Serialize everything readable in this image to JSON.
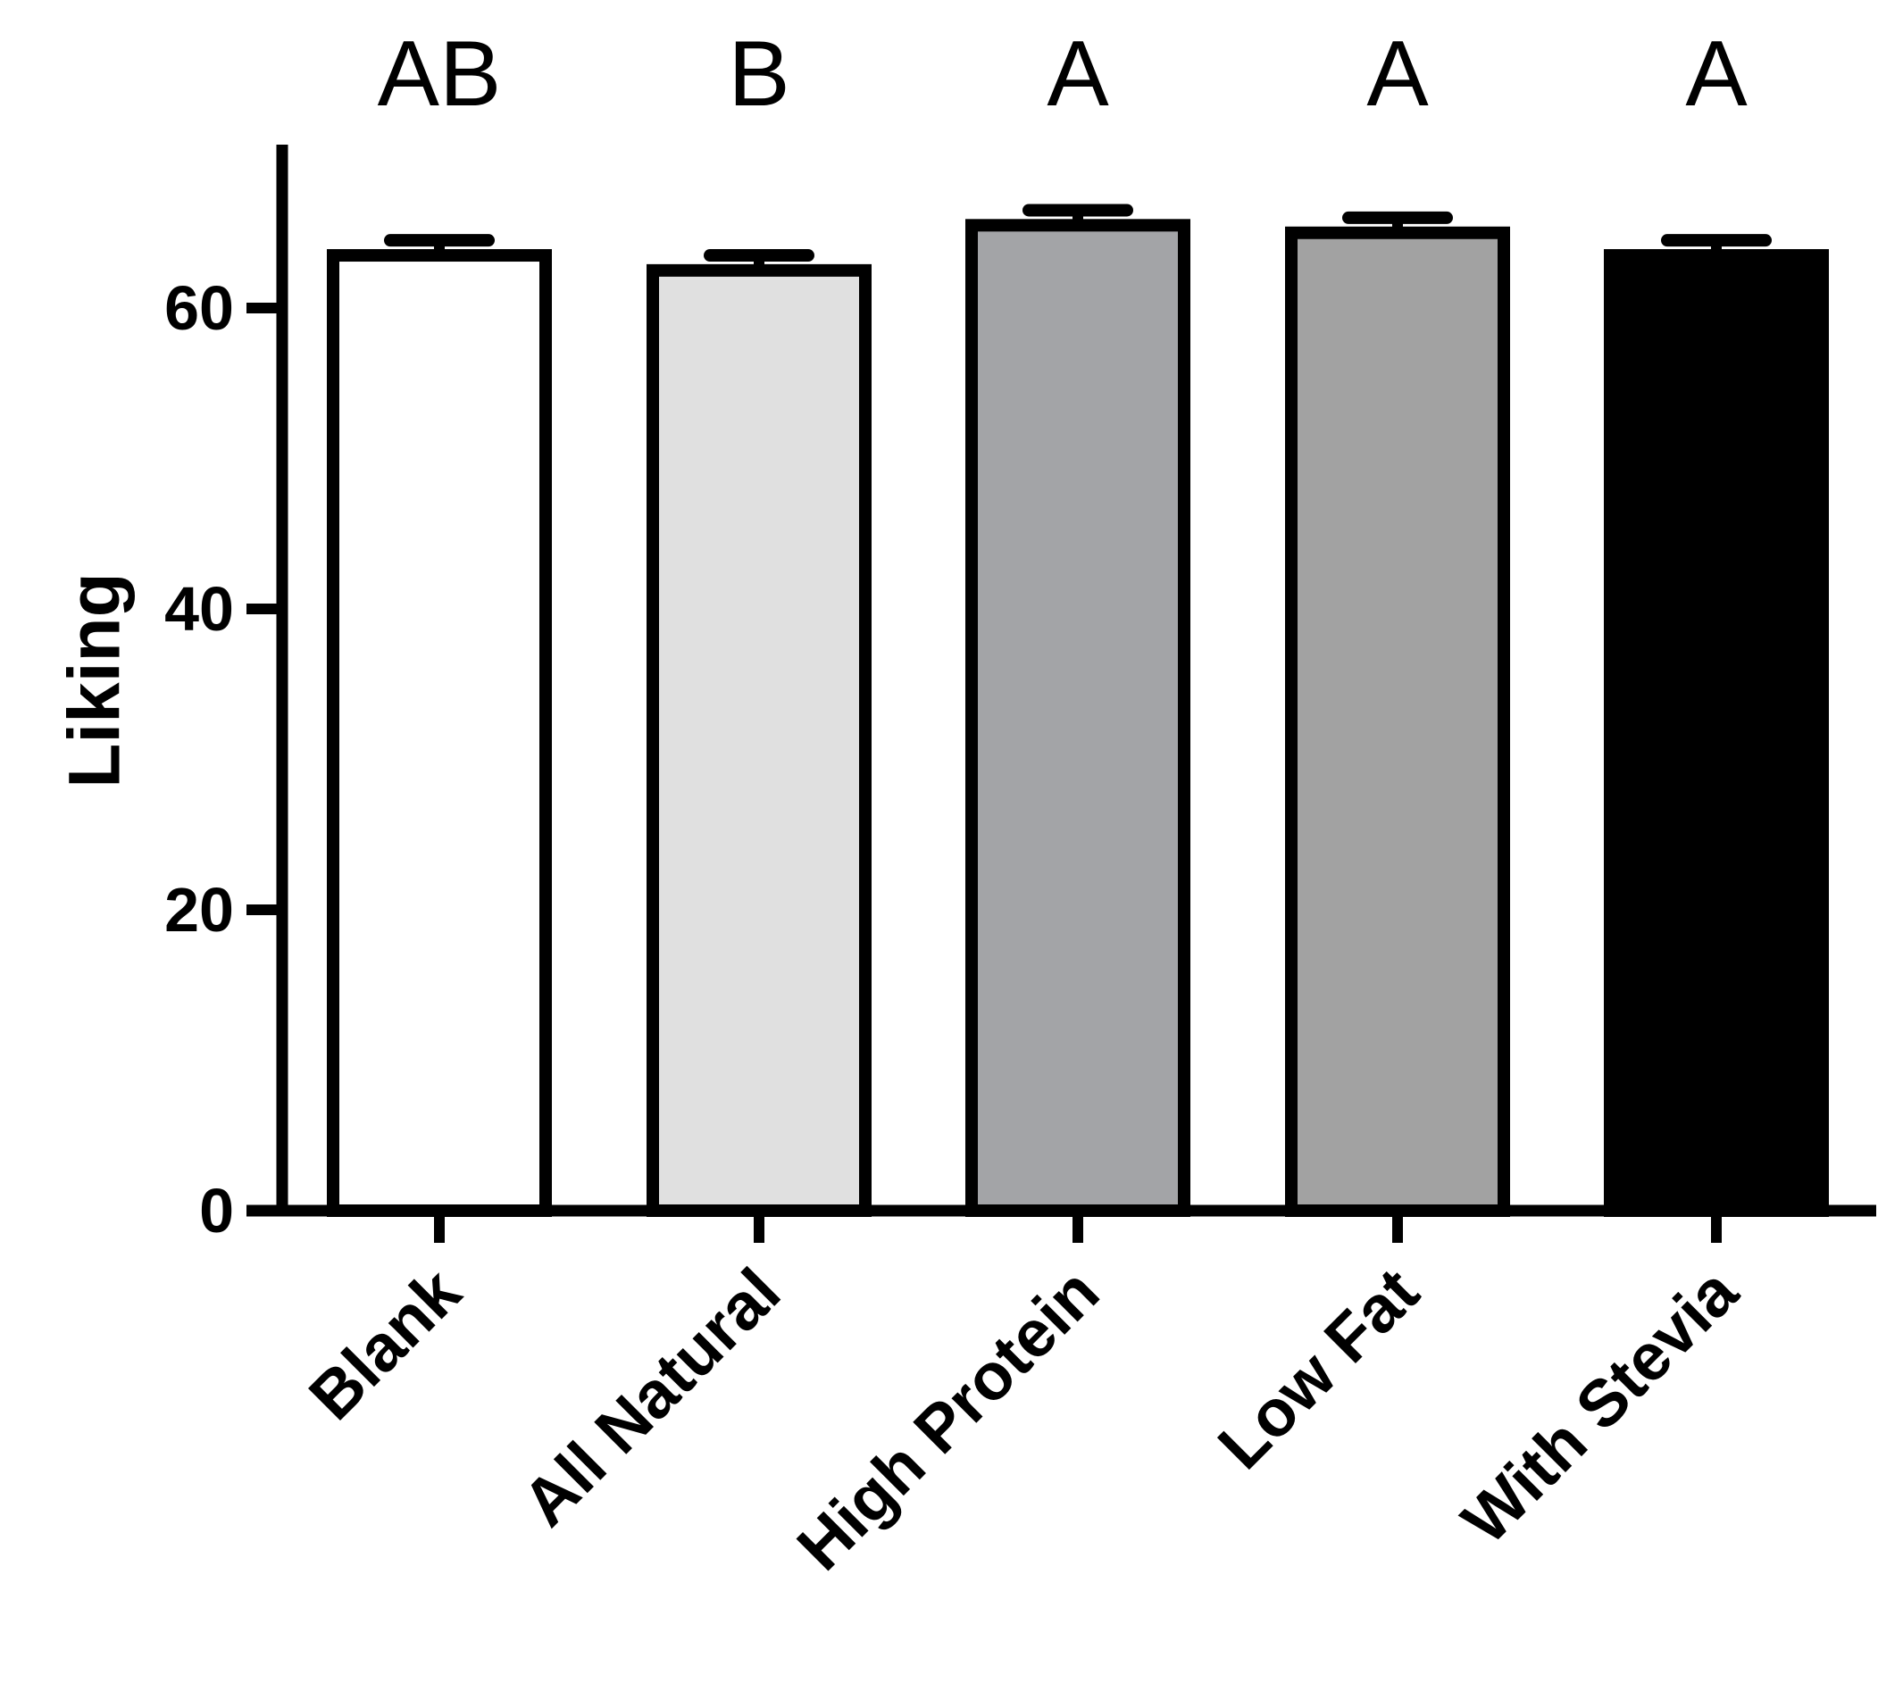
{
  "chart_data": {
    "type": "bar",
    "title": "",
    "xlabel": "",
    "ylabel": "Liking",
    "ylim": [
      0,
      70
    ],
    "yticks": [
      "0",
      "20",
      "40",
      "60"
    ],
    "categories": [
      "Blank",
      "All Natural",
      "High Protein",
      "Low Fat",
      "With Stevia"
    ],
    "values": [
      63.5,
      62.5,
      65.5,
      65.0,
      63.5
    ],
    "errors": [
      1.0,
      1.0,
      1.0,
      1.0,
      1.0
    ],
    "group_labels": [
      "AB",
      "B",
      "A",
      "A",
      "A"
    ],
    "bar_colors": [
      "#ffffff",
      "#e0e0e0",
      "#a3a4a7",
      "#a2a2a2",
      "#000000"
    ],
    "grid": false,
    "legend": "none"
  }
}
